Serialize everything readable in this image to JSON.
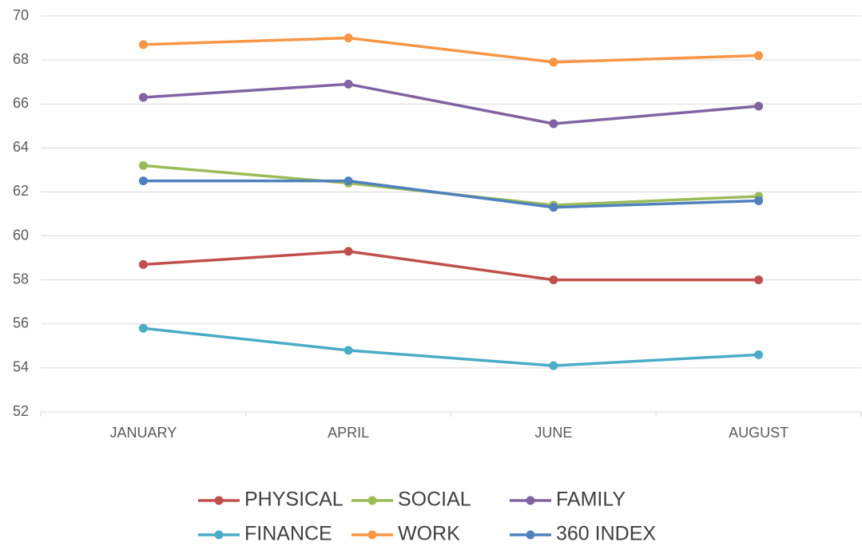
{
  "chart_data": {
    "type": "line",
    "categories": [
      "JANUARY",
      "APRIL",
      "JUNE",
      "AUGUST"
    ],
    "series": [
      {
        "name": "PHYSICAL",
        "color": "#c0504d",
        "values": [
          58.7,
          59.3,
          58.0,
          58.0
        ]
      },
      {
        "name": "SOCIAL",
        "color": "#9bbb59",
        "values": [
          63.2,
          62.4,
          61.4,
          61.8
        ]
      },
      {
        "name": "FAMILY",
        "color": "#8064a2",
        "values": [
          66.3,
          66.9,
          65.1,
          65.9
        ]
      },
      {
        "name": "FINANCE",
        "color": "#4bacc6",
        "values": [
          55.8,
          54.8,
          54.1,
          54.6
        ]
      },
      {
        "name": "WORK",
        "color": "#f79646",
        "values": [
          68.7,
          69.0,
          67.9,
          68.2
        ]
      },
      {
        "name": "360 INDEX",
        "color": "#4f81bd",
        "values": [
          62.5,
          62.5,
          61.3,
          61.6
        ]
      }
    ],
    "ylim": [
      52,
      70
    ],
    "yticks": [
      52,
      54,
      56,
      58,
      60,
      62,
      64,
      66,
      68,
      70
    ],
    "grid": true,
    "legend": "bottom"
  }
}
